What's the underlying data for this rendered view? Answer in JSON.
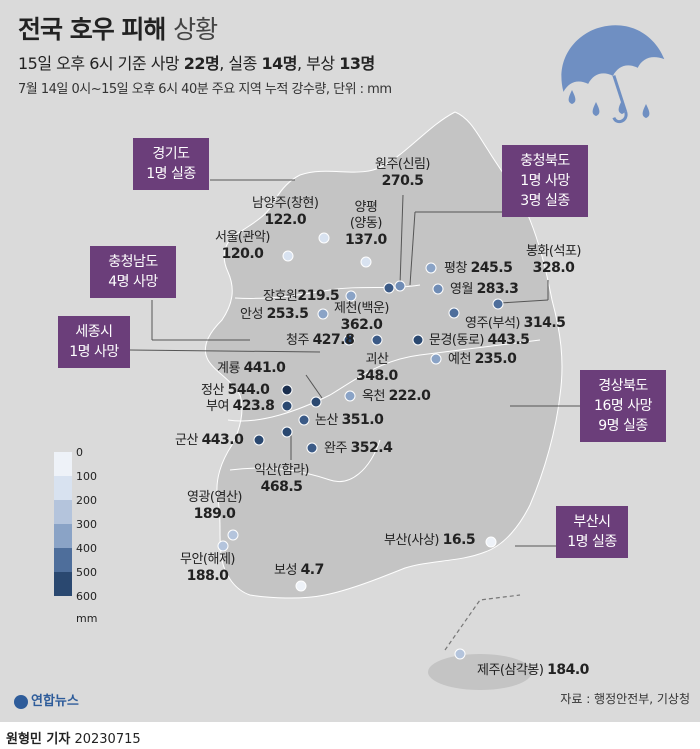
{
  "header": {
    "title_bold": "전국 호우 피해",
    "title_light": "상황",
    "subtitle_prefix": "15일 오후 6시 기준 사망",
    "deaths": "22명",
    "missing_label": "실종",
    "missing": "14명",
    "injured_label": "부상",
    "injured": "13명",
    "note": "7월 14일 0시~15일 오후 6시 40분 주요 지역 누적 강수량, 단위 : mm"
  },
  "regions": [
    {
      "name": "경기도",
      "detail": "1명 실종"
    },
    {
      "name": "충청북도",
      "detail": "1명 사망",
      "detail2": "3명 실종"
    },
    {
      "name": "충청남도",
      "detail": "4명 사망"
    },
    {
      "name": "세종시",
      "detail": "1명 사망"
    },
    {
      "name": "경상북도",
      "detail": "16명 사망",
      "detail2": "9명 실종"
    },
    {
      "name": "부산시",
      "detail": "1명 실종"
    }
  ],
  "stations": [
    {
      "name": "원주(신림)",
      "value": "270.5",
      "color": "#6f8cb5"
    },
    {
      "name": "남양주(창현)",
      "value": "122.0",
      "color": "#d8e2f0"
    },
    {
      "name": "양평",
      "name2": "(양동)",
      "value": "137.0",
      "color": "#d8e2f0"
    },
    {
      "name": "서울(관악)",
      "value": "120.0",
      "color": "#d8e2f0"
    },
    {
      "name": "평창",
      "value": "245.5",
      "color": "#8aa3c6"
    },
    {
      "name": "봉화(석포)",
      "value": "328.0",
      "color": "#4e6e9b"
    },
    {
      "name": "영월",
      "value": "283.3",
      "color": "#6f8cb5"
    },
    {
      "name": "장호원",
      "value": "219.5",
      "color": "#8aa3c6"
    },
    {
      "name": "제천(백운)",
      "value": "362.0",
      "color": "#3b5a86"
    },
    {
      "name": "영주(부석)",
      "value": "314.5",
      "color": "#4e6e9b"
    },
    {
      "name": "안성",
      "value": "253.5",
      "color": "#8aa3c6"
    },
    {
      "name": "청주",
      "value": "427.8",
      "color": "#2a4870"
    },
    {
      "name": "문경(동로)",
      "value": "443.5",
      "color": "#2a4870"
    },
    {
      "name": "괴산",
      "value": "348.0",
      "color": "#3b5a86"
    },
    {
      "name": "예천",
      "value": "235.0",
      "color": "#8aa3c6"
    },
    {
      "name": "계룡",
      "value": "441.0",
      "color": "#2a4870"
    },
    {
      "name": "정산",
      "value": "544.0",
      "color": "#1a2e4e"
    },
    {
      "name": "옥천",
      "value": "222.0",
      "color": "#8aa3c6"
    },
    {
      "name": "부여",
      "value": "423.8",
      "color": "#2a4870"
    },
    {
      "name": "논산",
      "value": "351.0",
      "color": "#3b5a86"
    },
    {
      "name": "군산",
      "value": "443.0",
      "color": "#2a4870"
    },
    {
      "name": "완주",
      "value": "352.4",
      "color": "#3b5a86"
    },
    {
      "name": "익산(함라)",
      "value": "468.5",
      "color": "#2a4870"
    },
    {
      "name": "영광(염산)",
      "value": "189.0",
      "color": "#b4c4dc"
    },
    {
      "name": "무안(해제)",
      "value": "188.0",
      "color": "#b4c4dc"
    },
    {
      "name": "부산(사상)",
      "value": "16.5",
      "color": "#eef2f8"
    },
    {
      "name": "보성",
      "value": "4.7",
      "color": "#eef2f8"
    },
    {
      "name": "제주(삼각봉)",
      "value": "184.0",
      "color": "#b4c4dc"
    }
  ],
  "legend": {
    "ticks": [
      "0",
      "100",
      "200",
      "300",
      "400",
      "500",
      "600"
    ],
    "unit": "mm",
    "colors": [
      "#eef2f8",
      "#d8e2f0",
      "#b4c4dc",
      "#8aa3c6",
      "#4e6e9b",
      "#2a4870",
      "#1a2e4e"
    ]
  },
  "logo": "연합뉴스",
  "source": "자료 : 행정안전부, 기상청",
  "footer": {
    "author": "원형민 기자",
    "date": "20230715"
  },
  "colors": {
    "box": "#6b3e7a",
    "land": "#c2c2c2",
    "background": "#dadada"
  }
}
